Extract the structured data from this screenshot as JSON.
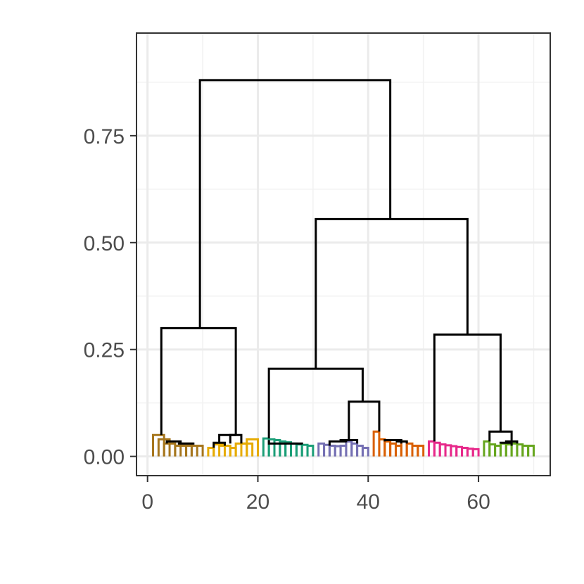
{
  "chart_data": {
    "type": "dendrogram",
    "title": "",
    "xlabel": "",
    "ylabel": "",
    "xlim": [
      -2,
      73
    ],
    "ylim": [
      -0.045,
      0.99
    ],
    "x_ticks": [
      0,
      20,
      40,
      60
    ],
    "y_ticks": [
      0.0,
      0.25,
      0.5,
      0.75
    ],
    "x_tick_labels": [
      "0",
      "20",
      "40",
      "60"
    ],
    "y_tick_labels": [
      "0.00",
      "0.25",
      "0.50",
      "0.75"
    ],
    "grid": true,
    "background": "#ffffff",
    "panel_border": "#333333",
    "colors": {
      "brown": "#a6761d",
      "gold": "#e6ab02",
      "teal": "#1b9e77",
      "purple": "#7570b3",
      "orange": "#d95f02",
      "pink": "#e7298a",
      "green": "#66a61e",
      "black": "#000000"
    },
    "clusters": [
      {
        "color": "brown",
        "leaves": [
          1,
          2,
          3,
          4,
          5,
          6,
          7,
          8,
          9,
          10
        ]
      },
      {
        "color": "gold",
        "leaves": [
          11,
          12,
          13,
          14,
          15,
          16,
          17,
          18,
          19,
          20
        ]
      },
      {
        "color": "teal",
        "leaves": [
          21,
          22,
          23,
          24,
          25,
          26,
          27,
          28,
          29,
          30
        ]
      },
      {
        "color": "purple",
        "leaves": [
          31,
          32,
          33,
          34,
          35,
          36,
          37,
          38,
          39,
          40
        ]
      },
      {
        "color": "orange",
        "leaves": [
          41,
          42,
          43,
          44,
          45,
          46,
          47,
          48,
          49,
          50
        ]
      },
      {
        "color": "pink",
        "leaves": [
          51,
          52,
          53,
          54,
          55,
          56,
          57,
          58,
          59,
          60
        ]
      },
      {
        "color": "green",
        "leaves": [
          61,
          62,
          63,
          64,
          65,
          66,
          67,
          68,
          69,
          70
        ]
      }
    ],
    "merges": [
      {
        "color": "brown",
        "x1": 1,
        "x2": 3,
        "y1": 0,
        "y2": 0,
        "h": 0.05
      },
      {
        "color": "brown",
        "x1": 2,
        "x2": 4,
        "y1": 0,
        "y2": 0,
        "h": 0.04
      },
      {
        "color": "brown",
        "x1": 3,
        "x2": 5,
        "y1": 0,
        "y2": 0,
        "h": 0.03
      },
      {
        "color": "brown",
        "x1": 5,
        "x2": 7,
        "y1": 0,
        "y2": 0,
        "h": 0.025
      },
      {
        "color": "brown",
        "x1": 6,
        "x2": 8,
        "y1": 0,
        "y2": 0,
        "h": 0.03
      },
      {
        "color": "brown",
        "x1": 7,
        "x2": 9,
        "y1": 0,
        "y2": 0,
        "h": 0.025
      },
      {
        "color": "brown",
        "x1": 8,
        "x2": 10,
        "y1": 0,
        "y2": 0,
        "h": 0.025
      },
      {
        "color": "gold",
        "x1": 11,
        "x2": 12,
        "y1": 0,
        "y2": 0,
        "h": 0.02
      },
      {
        "color": "gold",
        "x1": 12,
        "x2": 14,
        "y1": 0,
        "y2": 0,
        "h": 0.028
      },
      {
        "color": "gold",
        "x1": 13,
        "x2": 15,
        "y1": 0,
        "y2": 0,
        "h": 0.025
      },
      {
        "color": "gold",
        "x1": 15,
        "x2": 16,
        "y1": 0,
        "y2": 0,
        "h": 0.02
      },
      {
        "color": "gold",
        "x1": 16,
        "x2": 18,
        "y1": 0,
        "y2": 0,
        "h": 0.03
      },
      {
        "color": "gold",
        "x1": 17,
        "x2": 19,
        "y1": 0,
        "y2": 0,
        "h": 0.03
      },
      {
        "color": "gold",
        "x1": 18,
        "x2": 20,
        "y1": 0,
        "y2": 0,
        "h": 0.04
      },
      {
        "color": "teal",
        "x1": 21,
        "x2": 22,
        "y1": 0,
        "y2": 0,
        "h": 0.042
      },
      {
        "color": "teal",
        "x1": 22,
        "x2": 23,
        "y1": 0,
        "y2": 0,
        "h": 0.04
      },
      {
        "color": "teal",
        "x1": 23,
        "x2": 24,
        "y1": 0,
        "y2": 0,
        "h": 0.038
      },
      {
        "color": "teal",
        "x1": 24,
        "x2": 25,
        "y1": 0,
        "y2": 0,
        "h": 0.035
      },
      {
        "color": "teal",
        "x1": 25,
        "x2": 26,
        "y1": 0,
        "y2": 0,
        "h": 0.033
      },
      {
        "color": "teal",
        "x1": 26,
        "x2": 27,
        "y1": 0,
        "y2": 0,
        "h": 0.03
      },
      {
        "color": "teal",
        "x1": 27,
        "x2": 28,
        "y1": 0,
        "y2": 0,
        "h": 0.028
      },
      {
        "color": "teal",
        "x1": 28,
        "x2": 29,
        "y1": 0,
        "y2": 0,
        "h": 0.027
      },
      {
        "color": "teal",
        "x1": 29,
        "x2": 30,
        "y1": 0,
        "y2": 0,
        "h": 0.025
      },
      {
        "color": "purple",
        "x1": 31,
        "x2": 32,
        "y1": 0,
        "y2": 0,
        "h": 0.03
      },
      {
        "color": "purple",
        "x1": 32,
        "x2": 33,
        "y1": 0,
        "y2": 0,
        "h": 0.027
      },
      {
        "color": "purple",
        "x1": 33,
        "x2": 34,
        "y1": 0,
        "y2": 0,
        "h": 0.025
      },
      {
        "color": "purple",
        "x1": 34,
        "x2": 35,
        "y1": 0,
        "y2": 0,
        "h": 0.024
      },
      {
        "color": "purple",
        "x1": 35,
        "x2": 36,
        "y1": 0,
        "y2": 0,
        "h": 0.025
      },
      {
        "color": "purple",
        "x1": 36,
        "x2": 37,
        "y1": 0,
        "y2": 0,
        "h": 0.035
      },
      {
        "color": "purple",
        "x1": 37,
        "x2": 38,
        "y1": 0,
        "y2": 0,
        "h": 0.03
      },
      {
        "color": "purple",
        "x1": 38,
        "x2": 39,
        "y1": 0,
        "y2": 0,
        "h": 0.025
      },
      {
        "color": "purple",
        "x1": 39,
        "x2": 40,
        "y1": 0,
        "y2": 0,
        "h": 0.02
      },
      {
        "color": "orange",
        "x1": 41,
        "x2": 42,
        "y1": 0,
        "y2": 0,
        "h": 0.058
      },
      {
        "color": "orange",
        "x1": 42,
        "x2": 43,
        "y1": 0,
        "y2": 0,
        "h": 0.04
      },
      {
        "color": "orange",
        "x1": 43,
        "x2": 44,
        "y1": 0,
        "y2": 0,
        "h": 0.035
      },
      {
        "color": "orange",
        "x1": 44,
        "x2": 45,
        "y1": 0,
        "y2": 0,
        "h": 0.03
      },
      {
        "color": "orange",
        "x1": 45,
        "x2": 46,
        "y1": 0,
        "y2": 0,
        "h": 0.025
      },
      {
        "color": "orange",
        "x1": 46,
        "x2": 47,
        "y1": 0,
        "y2": 0,
        "h": 0.035
      },
      {
        "color": "orange",
        "x1": 47,
        "x2": 48,
        "y1": 0,
        "y2": 0,
        "h": 0.03
      },
      {
        "color": "orange",
        "x1": 48,
        "x2": 49,
        "y1": 0,
        "y2": 0,
        "h": 0.025
      },
      {
        "color": "orange",
        "x1": 49,
        "x2": 50,
        "y1": 0,
        "y2": 0,
        "h": 0.025
      },
      {
        "color": "pink",
        "x1": 51,
        "x2": 52,
        "y1": 0,
        "y2": 0,
        "h": 0.035
      },
      {
        "color": "pink",
        "x1": 52,
        "x2": 53,
        "y1": 0,
        "y2": 0,
        "h": 0.032
      },
      {
        "color": "pink",
        "x1": 53,
        "x2": 54,
        "y1": 0,
        "y2": 0,
        "h": 0.028
      },
      {
        "color": "pink",
        "x1": 54,
        "x2": 55,
        "y1": 0,
        "y2": 0,
        "h": 0.026
      },
      {
        "color": "pink",
        "x1": 55,
        "x2": 56,
        "y1": 0,
        "y2": 0,
        "h": 0.024
      },
      {
        "color": "pink",
        "x1": 56,
        "x2": 57,
        "y1": 0,
        "y2": 0,
        "h": 0.022
      },
      {
        "color": "pink",
        "x1": 57,
        "x2": 58,
        "y1": 0,
        "y2": 0,
        "h": 0.02
      },
      {
        "color": "pink",
        "x1": 58,
        "x2": 59,
        "y1": 0,
        "y2": 0,
        "h": 0.018
      },
      {
        "color": "pink",
        "x1": 59,
        "x2": 60,
        "y1": 0,
        "y2": 0,
        "h": 0.017
      },
      {
        "color": "green",
        "x1": 61,
        "x2": 62,
        "y1": 0,
        "y2": 0,
        "h": 0.035
      },
      {
        "color": "green",
        "x1": 62,
        "x2": 63,
        "y1": 0,
        "y2": 0,
        "h": 0.028
      },
      {
        "color": "green",
        "x1": 63,
        "x2": 64,
        "y1": 0,
        "y2": 0,
        "h": 0.025
      },
      {
        "color": "green",
        "x1": 64,
        "x2": 65,
        "y1": 0,
        "y2": 0,
        "h": 0.03
      },
      {
        "color": "green",
        "x1": 65,
        "x2": 66,
        "y1": 0,
        "y2": 0,
        "h": 0.028
      },
      {
        "color": "green",
        "x1": 66,
        "x2": 67,
        "y1": 0,
        "y2": 0,
        "h": 0.03
      },
      {
        "color": "green",
        "x1": 67,
        "x2": 68,
        "y1": 0,
        "y2": 0,
        "h": 0.028
      },
      {
        "color": "green",
        "x1": 68,
        "x2": 69,
        "y1": 0,
        "y2": 0,
        "h": 0.025
      },
      {
        "color": "green",
        "x1": 69,
        "x2": 70,
        "y1": 0,
        "y2": 0,
        "h": 0.025
      },
      {
        "color": "black",
        "x1": 3.5,
        "x2": 6,
        "y1": 0.03,
        "y2": 0.03,
        "h": 0.035
      },
      {
        "color": "black",
        "x1": 5.5,
        "x2": 8.5,
        "y1": 0.03,
        "y2": 0.03,
        "h": 0.03
      },
      {
        "color": "black",
        "x1": 12,
        "x2": 14,
        "y1": 0.02,
        "y2": 0.025,
        "h": 0.032
      },
      {
        "color": "black",
        "x1": 15,
        "x2": 17,
        "y1": 0.03,
        "y2": 0.03,
        "h": 0.05
      },
      {
        "color": "black",
        "x1": 13,
        "x2": 16,
        "y1": 0.032,
        "y2": 0.05,
        "h": 0.05
      },
      {
        "color": "black",
        "x1": 2.5,
        "x2": 16,
        "y1": 0.05,
        "y2": 0.05,
        "h": 0.3
      },
      {
        "color": "black",
        "x1": 22,
        "x2": 28,
        "y1": 0.038,
        "y2": 0.028,
        "h": 0.03
      },
      {
        "color": "black",
        "x1": 33,
        "x2": 36,
        "y1": 0.025,
        "y2": 0.033,
        "h": 0.035
      },
      {
        "color": "black",
        "x1": 35,
        "x2": 38,
        "y1": 0.035,
        "y2": 0.03,
        "h": 0.038
      },
      {
        "color": "black",
        "x1": 43,
        "x2": 46,
        "y1": 0.035,
        "y2": 0.03,
        "h": 0.038
      },
      {
        "color": "black",
        "x1": 45,
        "x2": 47,
        "y1": 0.035,
        "y2": 0.03,
        "h": 0.035
      },
      {
        "color": "black",
        "x1": 36.5,
        "x2": 42,
        "y1": 0.04,
        "y2": 0.058,
        "h": 0.128
      },
      {
        "color": "black",
        "x1": 22,
        "x2": 39,
        "y1": 0.042,
        "y2": 0.128,
        "h": 0.205
      },
      {
        "color": "black",
        "x1": 64,
        "x2": 66,
        "y1": 0.03,
        "y2": 0.025,
        "h": 0.032
      },
      {
        "color": "black",
        "x1": 65,
        "x2": 67,
        "y1": 0.032,
        "y2": 0.03,
        "h": 0.035
      },
      {
        "color": "black",
        "x1": 62,
        "x2": 66,
        "y1": 0.035,
        "y2": 0.035,
        "h": 0.058
      },
      {
        "color": "black",
        "x1": 52,
        "x2": 64,
        "y1": 0.035,
        "y2": 0.058,
        "h": 0.285
      },
      {
        "color": "black",
        "x1": 30.5,
        "x2": 58,
        "y1": 0.205,
        "y2": 0.285,
        "h": 0.555
      },
      {
        "color": "black",
        "x1": 9.5,
        "x2": 44,
        "y1": 0.3,
        "y2": 0.555,
        "h": 0.88
      }
    ]
  }
}
